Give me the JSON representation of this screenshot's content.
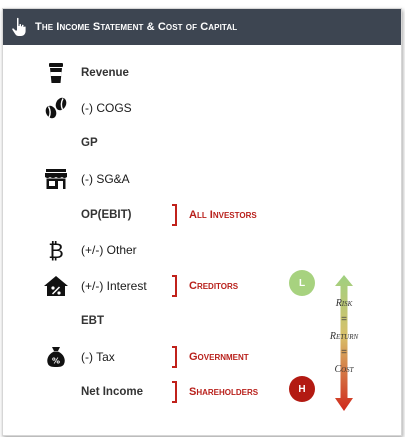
{
  "header": {
    "title": "The Income Statement & Cost of Capital",
    "icon": "hand-pointer-icon"
  },
  "rows": [
    {
      "label": "Revenue",
      "bold": true,
      "icon": "cup-icon"
    },
    {
      "label": "(-) COGS",
      "bold": false,
      "icon": "coffee-beans-icon"
    },
    {
      "label": "GP",
      "bold": true,
      "icon": ""
    },
    {
      "label": "(-) SG&A",
      "bold": false,
      "icon": "store-icon"
    },
    {
      "label": "OP(EBIT)",
      "bold": true,
      "icon": "",
      "party": "All Investors"
    },
    {
      "label": "(+/-) Other",
      "bold": false,
      "icon": "bitcoin-icon"
    },
    {
      "label": "(+/-) Interest",
      "bold": false,
      "icon": "house-percent-icon",
      "party": "Creditors"
    },
    {
      "label": "EBT",
      "bold": true,
      "icon": ""
    },
    {
      "label": "(-) Tax",
      "bold": false,
      "icon": "money-bag-icon",
      "party": "Government"
    },
    {
      "label": "Net Income",
      "bold": true,
      "icon": "",
      "party": "Shareholders"
    }
  ],
  "risk_scale": {
    "low_label": "L",
    "high_label": "H",
    "risk": "Risk",
    "return": "Return",
    "cost": "Cost",
    "equals": "=",
    "low_color": "#a7d27f",
    "high_color": "#b31a12"
  },
  "colors": {
    "header_bg": "#3d4551",
    "accent_red": "#c0211b"
  }
}
